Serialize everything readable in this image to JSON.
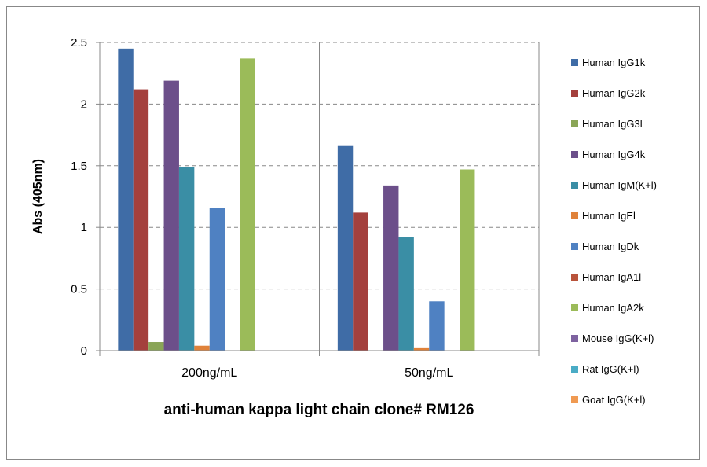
{
  "chart_data": {
    "type": "bar",
    "title": "",
    "xlabel": "anti-human kappa light chain clone# RM126",
    "ylabel": "Abs (405nm)",
    "ylim": [
      0,
      2.5
    ],
    "yticks": [
      "0",
      "0.5",
      "1",
      "1.5",
      "2",
      "2.5"
    ],
    "grid": true,
    "legend_position": "right",
    "categories": [
      "200ng/mL",
      "50ng/mL"
    ],
    "series": [
      {
        "name": "Human IgG1k",
        "color": "#3F6CA6",
        "values": [
          2.45,
          1.66
        ]
      },
      {
        "name": "Human IgG2k",
        "color": "#A4403D",
        "values": [
          2.12,
          1.12
        ]
      },
      {
        "name": "Human IgG3l",
        "color": "#8AA557",
        "values": [
          0.07,
          0
        ]
      },
      {
        "name": "Human IgG4k",
        "color": "#6C4F8A",
        "values": [
          2.19,
          1.34
        ]
      },
      {
        "name": "Human IgM(K+l)",
        "color": "#3A8EA5",
        "values": [
          1.49,
          0.92
        ]
      },
      {
        "name": "Human IgEl",
        "color": "#E0823A",
        "values": [
          0.04,
          0.02
        ]
      },
      {
        "name": "Human IgDk",
        "color": "#4F81C2",
        "values": [
          1.16,
          0.4
        ]
      },
      {
        "name": "Human IgA1l",
        "color": "#B9533B",
        "values": [
          0,
          0
        ]
      },
      {
        "name": "Human IgA2k",
        "color": "#9BBB59",
        "values": [
          2.37,
          1.47
        ]
      },
      {
        "name": "Mouse IgG(K+l)",
        "color": "#7E62A0",
        "values": [
          0,
          0
        ]
      },
      {
        "name": "Rat IgG(K+l)",
        "color": "#4AACC6",
        "values": [
          0,
          0
        ]
      },
      {
        "name": "Goat IgG(K+l)",
        "color": "#F09A52",
        "values": [
          0,
          0
        ]
      }
    ]
  }
}
